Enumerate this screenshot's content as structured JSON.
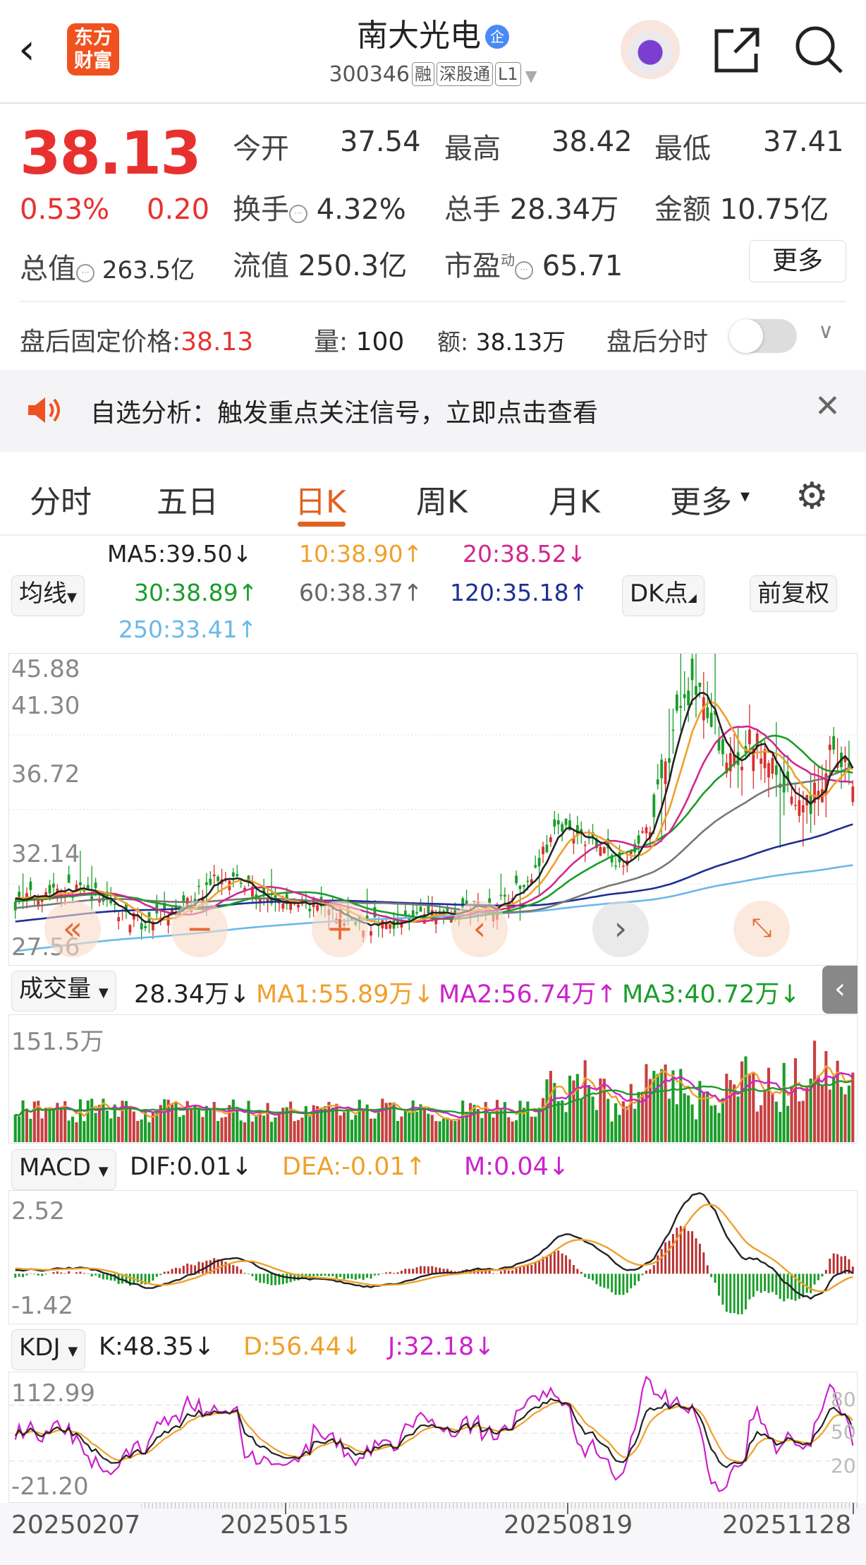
{
  "header": {
    "back_icon": "chevron-left-icon",
    "logo_line1": "东方",
    "logo_line2": "财富",
    "title": "南大光电",
    "title_badge": "企",
    "code": "300346",
    "tags": [
      "融",
      "深股通",
      "L1"
    ],
    "share_icon": "share-icon",
    "search_icon": "search-icon"
  },
  "quote": {
    "price": "38.13",
    "change_pct": "0.53%",
    "change": "0.20",
    "open_label": "今开",
    "open": "37.54",
    "high_label": "最高",
    "high": "38.42",
    "low_label": "最低",
    "low": "37.41",
    "turnover_label": "换手",
    "turnover": "4.32%",
    "volume_label": "总手",
    "volume": "28.34万",
    "amount_label": "金额",
    "amount": "10.75亿",
    "mcap_label": "总值",
    "mcap": "263.5亿",
    "float_label": "流值",
    "float_cap": "250.3亿",
    "pe_label": "市盈",
    "pe_sup": "动",
    "pe": "65.71",
    "more_label": "更多"
  },
  "after_hours": {
    "price_label": "盘后固定价格:",
    "price": "38.13",
    "vol_label": "量:",
    "vol": "100",
    "amt_label": "额:",
    "amt": "38.13万",
    "toggle_label": "盘后分时",
    "toggle_on": false
  },
  "notice": {
    "text": "自选分析：触发重点关注信号，立即点击查看",
    "icon": "speaker-icon"
  },
  "tabs": {
    "items": [
      "分时",
      "五日",
      "日K",
      "周K",
      "月K",
      "更多"
    ],
    "active": 2
  },
  "ma": {
    "selector": "均线",
    "ma5": "MA5:39.50↓",
    "ma10": "10:38.90↑",
    "ma20": "20:38.52↓",
    "ma30": "30:38.89↑",
    "ma60": "60:38.37↑",
    "ma120": "120:35.18↑",
    "ma250": "250:33.41↑",
    "dk_button": "DK点",
    "adjust_button": "前复权",
    "colors": {
      "ma5": "#222222",
      "ma10": "#f0a02a",
      "ma20": "#d0288e",
      "ma30": "#1a9d2a",
      "ma60": "#777777",
      "ma120": "#1c2f94",
      "ma250": "#6ab8ea"
    }
  },
  "volume": {
    "selector": "成交量",
    "value": "28.34万↓",
    "ma1": "MA1:55.89万↓",
    "ma2": "MA2:56.74万↑",
    "ma3": "MA3:40.72万↓",
    "axis_max": "151.5万"
  },
  "macd": {
    "selector": "MACD",
    "dif": "DIF:0.01↓",
    "dea": "DEA:-0.01↑",
    "m": "M:0.04↓",
    "axis_max": "2.52",
    "axis_min": "-1.42"
  },
  "kdj": {
    "selector": "KDJ",
    "k": "K:48.35↓",
    "d": "D:56.44↓",
    "j": "J:32.18↓",
    "axis_max": "112.99",
    "axis_min": "-21.20",
    "levels": [
      "80",
      "50",
      "20"
    ]
  },
  "dates": [
    "20250207",
    "20250515",
    "20250819",
    "20251128"
  ],
  "chart_data": {
    "type": "candlestick",
    "price_axis": [
      "45.88",
      "41.30",
      "36.72",
      "32.14",
      "27.56"
    ],
    "ylim": [
      27.56,
      45.88
    ],
    "close_path": [
      [
        0,
        31.0
      ],
      [
        0.05,
        32.0
      ],
      [
        0.1,
        31.4
      ],
      [
        0.15,
        29.6
      ],
      [
        0.2,
        30.6
      ],
      [
        0.25,
        33.0
      ],
      [
        0.3,
        31.0
      ],
      [
        0.36,
        30.8
      ],
      [
        0.42,
        29.6
      ],
      [
        0.47,
        30.0
      ],
      [
        0.52,
        30.6
      ],
      [
        0.57,
        30.8
      ],
      [
        0.61,
        32.3
      ],
      [
        0.65,
        35.8
      ],
      [
        0.68,
        35.0
      ],
      [
        0.72,
        33.4
      ],
      [
        0.76,
        35.5
      ],
      [
        0.79,
        42.5
      ],
      [
        0.82,
        44.6
      ],
      [
        0.85,
        38.8
      ],
      [
        0.88,
        41.2
      ],
      [
        0.92,
        38.2
      ],
      [
        0.95,
        37.2
      ],
      [
        0.975,
        40.3
      ],
      [
        1,
        38.13
      ]
    ]
  },
  "controls": {
    "rewind": "double-chevron-left-icon",
    "zoom_out": "minus-icon",
    "zoom_in": "plus-icon",
    "prev": "chevron-left-icon",
    "next": "chevron-right-icon",
    "fullscreen": "expand-icon",
    "collapse": "chevron-left-icon"
  }
}
